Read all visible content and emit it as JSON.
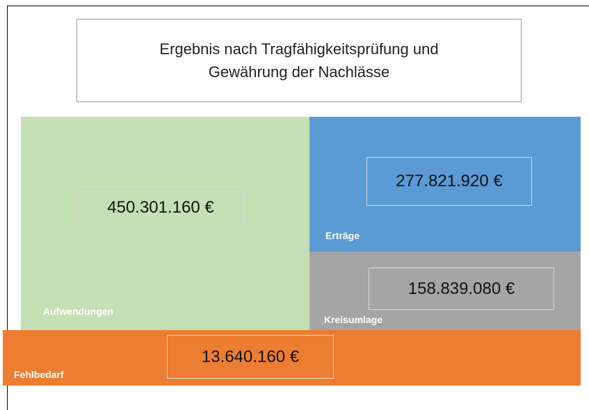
{
  "title": [
    "Ergebnis nach Tragfähigkeitsprüfung und",
    "Gewährung der Nachlässe"
  ],
  "blocks": [
    {
      "label": "Aufwendungen",
      "value": "450.301.160 €"
    },
    {
      "label": "Erträge",
      "value": "277.821.920 €"
    },
    {
      "label": "Kreisumlage",
      "value": "158.839.080 €"
    },
    {
      "label": "Fehlbedarf",
      "value": "13.640.160 €"
    }
  ]
}
